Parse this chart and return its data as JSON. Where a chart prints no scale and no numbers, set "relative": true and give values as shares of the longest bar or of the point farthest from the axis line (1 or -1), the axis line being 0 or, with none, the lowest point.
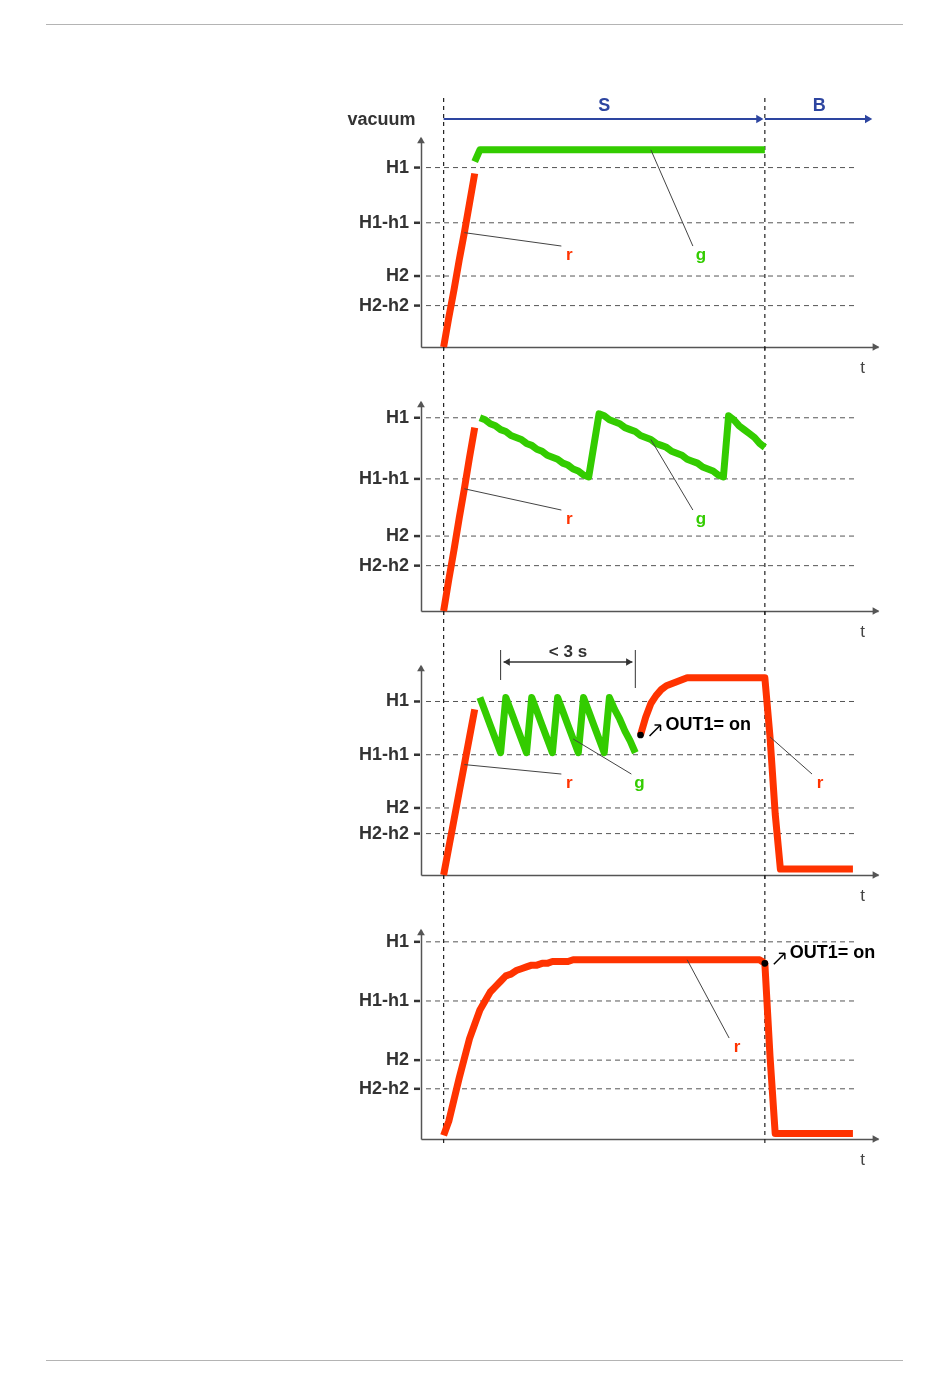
{
  "chart_data": [
    {
      "type": "line",
      "relative": true,
      "xlabel": "t",
      "ylabel": "vacuum",
      "categories": [
        null,
        null,
        null,
        null,
        null,
        null,
        null,
        null,
        null,
        null,
        null,
        null,
        null,
        null,
        null,
        null,
        null,
        null,
        null,
        null,
        null,
        null,
        null,
        null,
        null,
        null,
        null,
        null,
        null,
        null,
        null,
        null,
        null,
        null,
        null,
        null,
        null,
        null,
        null,
        null,
        null,
        null,
        null,
        null,
        null,
        null,
        null,
        null,
        null,
        null,
        null,
        null,
        null,
        null,
        null,
        null,
        null,
        null,
        null,
        null,
        null,
        null,
        null,
        null,
        null,
        null,
        null,
        null,
        null,
        null,
        null,
        null,
        null,
        null,
        null,
        null,
        null,
        null,
        null,
        null,
        null,
        null,
        null,
        null
      ],
      "series": [
        {
          "name": "r",
          "color": "#ff3300",
          "values": [
            0,
            0.15,
            0.29,
            0.44,
            0.58,
            0.73,
            0.88,
            null,
            null,
            null,
            null,
            null,
            null,
            null,
            null,
            null,
            null,
            null,
            null,
            null,
            null,
            null,
            null,
            null,
            null,
            null,
            null,
            null,
            null,
            null,
            null,
            null,
            null,
            null,
            null,
            null,
            null,
            null,
            null,
            null,
            null,
            null,
            null,
            null,
            null,
            null,
            null,
            null,
            null,
            null,
            null,
            null,
            null,
            null,
            null,
            null,
            null,
            null,
            null,
            null,
            null,
            null,
            null,
            null,
            null,
            null,
            null,
            null,
            null,
            null,
            null,
            null,
            null,
            null,
            null,
            null,
            null,
            null,
            null,
            null,
            null,
            null,
            null,
            null
          ]
        },
        {
          "name": "g",
          "color": "#33cc00",
          "values": [
            null,
            null,
            null,
            null,
            null,
            null,
            0.94,
            1,
            1,
            1,
            1,
            1,
            1,
            1,
            1,
            1,
            1,
            1,
            1,
            1,
            1,
            1,
            1,
            1,
            1,
            1,
            1,
            1,
            1,
            1,
            1,
            1,
            1,
            1,
            1,
            1,
            1,
            1,
            1,
            1,
            1,
            1,
            1,
            1,
            1,
            1,
            1,
            1,
            1,
            1,
            1,
            1,
            1,
            1,
            1,
            1,
            1,
            1,
            1,
            1,
            1,
            1,
            1,
            null,
            null,
            null,
            null,
            null,
            null,
            null,
            null,
            null,
            null,
            null,
            null,
            null,
            null,
            null,
            null,
            null,
            null,
            null,
            null,
            null
          ]
        }
      ],
      "ref_lines": [
        {
          "axis": "y",
          "value": 0.91,
          "label": "H1",
          "line_style": "dashed"
        },
        {
          "axis": "y",
          "value": 0.63,
          "label": "H1-h1",
          "line_style": "dashed"
        },
        {
          "axis": "y",
          "value": 0.36,
          "label": "H2",
          "line_style": "dashed"
        },
        {
          "axis": "y",
          "value": 0.21,
          "label": "H2-h2",
          "line_style": "dashed"
        }
      ],
      "annotations": [
        "S",
        "B"
      ]
    },
    {
      "type": "line",
      "relative": true,
      "xlabel": "t",
      "categories": [
        null,
        null,
        null,
        null,
        null,
        null,
        null,
        null,
        null,
        null,
        null,
        null,
        null,
        null,
        null,
        null,
        null,
        null,
        null,
        null,
        null,
        null,
        null,
        null,
        null,
        null,
        null,
        null,
        null,
        null,
        null,
        null,
        null,
        null,
        null,
        null,
        null,
        null,
        null,
        null,
        null,
        null,
        null,
        null,
        null,
        null,
        null,
        null,
        null,
        null,
        null,
        null,
        null,
        null,
        null,
        null,
        null,
        null,
        null,
        null,
        null,
        null,
        null,
        null,
        null,
        null,
        null,
        null,
        null,
        null,
        null,
        null,
        null,
        null,
        null,
        null,
        null,
        null,
        null,
        null,
        null,
        null,
        null,
        null
      ],
      "series": [
        {
          "name": "r",
          "color": "#ff3300",
          "values": [
            0,
            0.16,
            0.31,
            0.47,
            0.62,
            0.78,
            0.93,
            null,
            null,
            null,
            null,
            null,
            null,
            null,
            null,
            null,
            null,
            null,
            null,
            null,
            null,
            null,
            null,
            null,
            null,
            null,
            null,
            null,
            null,
            null,
            null,
            null,
            null,
            null,
            null,
            null,
            null,
            null,
            null,
            null,
            null,
            null,
            null,
            null,
            null,
            null,
            null,
            null,
            null,
            null,
            null,
            null,
            null,
            null,
            null,
            null,
            null,
            null,
            null,
            null,
            null,
            null,
            null,
            null,
            null,
            null,
            null,
            null,
            null,
            null,
            null,
            null,
            null,
            null,
            null,
            null,
            null,
            null,
            null,
            null,
            null,
            null,
            null,
            null
          ]
        },
        {
          "name": "g",
          "color": "#33cc00",
          "values": [
            null,
            null,
            null,
            null,
            null,
            null,
            null,
            0.98,
            0.97,
            0.95,
            0.94,
            0.92,
            0.91,
            0.89,
            0.88,
            0.87,
            0.85,
            0.84,
            0.82,
            0.81,
            0.79,
            0.78,
            0.77,
            0.75,
            0.74,
            0.72,
            0.71,
            0.69,
            0.68,
            0.84,
            1,
            0.99,
            0.97,
            0.96,
            0.95,
            0.93,
            0.92,
            0.91,
            0.89,
            0.88,
            0.87,
            0.85,
            0.84,
            0.83,
            0.81,
            0.8,
            0.79,
            0.77,
            0.76,
            0.75,
            0.73,
            0.72,
            0.71,
            0.69,
            0.68,
            0.99,
            0.97,
            0.94,
            0.92,
            0.9,
            0.88,
            0.85,
            0.83,
            null,
            null,
            null,
            null,
            null,
            null,
            null,
            null,
            null,
            null,
            null,
            null,
            null,
            null,
            null,
            null,
            null,
            null,
            null,
            null,
            null
          ]
        }
      ],
      "ref_lines": [
        {
          "axis": "y",
          "value": 0.98,
          "label": "H1",
          "line_style": "dashed"
        },
        {
          "axis": "y",
          "value": 0.67,
          "label": "H1-h1",
          "line_style": "dashed"
        },
        {
          "axis": "y",
          "value": 0.38,
          "label": "H2",
          "line_style": "dashed"
        },
        {
          "axis": "y",
          "value": 0.23,
          "label": "H2-h2",
          "line_style": "dashed"
        }
      ]
    },
    {
      "type": "line",
      "relative": true,
      "xlabel": "t",
      "categories": [
        null,
        null,
        null,
        null,
        null,
        null,
        null,
        null,
        null,
        null,
        null,
        null,
        null,
        null,
        null,
        null,
        null,
        null,
        null,
        null,
        null,
        null,
        null,
        null,
        null,
        null,
        null,
        null,
        null,
        null,
        null,
        null,
        null,
        null,
        null,
        null,
        null,
        null,
        null,
        null,
        null,
        null,
        null,
        null,
        null,
        null,
        null,
        null,
        null,
        null,
        null,
        null,
        null,
        null,
        null,
        null,
        null,
        null,
        null,
        null,
        null,
        null,
        null,
        null,
        null,
        null,
        null,
        null,
        null,
        null,
        null,
        null,
        null,
        null,
        null,
        null,
        null,
        null,
        null,
        null,
        null,
        null,
        null,
        null
      ],
      "series": [
        {
          "name": "r",
          "color": "#ff3300",
          "values": [
            0,
            0.14,
            0.28,
            0.42,
            0.56,
            0.7,
            0.84,
            null,
            null,
            null,
            null,
            null,
            null,
            null,
            null,
            null,
            null,
            null,
            null,
            null,
            null,
            null,
            null,
            null,
            null,
            null,
            null,
            null,
            null,
            null,
            null,
            null,
            null,
            null,
            null,
            null,
            null,
            null,
            0.71,
            0.8,
            0.87,
            0.91,
            0.94,
            0.96,
            0.97,
            0.98,
            0.99,
            1,
            1,
            1,
            1,
            1,
            1,
            1,
            1,
            1,
            1,
            1,
            1,
            1,
            1,
            1,
            1,
            0.7,
            0.31,
            0.03,
            0.03,
            0.03,
            0.03,
            0.03,
            0.03,
            0.03,
            0.03,
            0.03,
            0.03,
            0.03,
            0.03,
            0.03,
            0.03,
            0.03,
            null,
            null,
            null,
            null
          ]
        },
        {
          "name": "g",
          "color": "#33cc00",
          "values": [
            null,
            null,
            null,
            null,
            null,
            null,
            null,
            0.9,
            0.83,
            0.76,
            0.69,
            0.62,
            0.9,
            0.83,
            0.76,
            0.69,
            0.62,
            0.9,
            0.83,
            0.76,
            0.69,
            0.62,
            0.9,
            0.83,
            0.76,
            0.69,
            0.62,
            0.9,
            0.83,
            0.76,
            0.69,
            0.62,
            0.9,
            0.84,
            0.79,
            0.73,
            0.68,
            0.62,
            null,
            null,
            null,
            null,
            null,
            null,
            null,
            null,
            null,
            null,
            null,
            null,
            null,
            null,
            null,
            null,
            null,
            null,
            null,
            null,
            null,
            null,
            null,
            null,
            null,
            null,
            null,
            null,
            null,
            null,
            null,
            null,
            null,
            null,
            null,
            null,
            null,
            null,
            null,
            null,
            null,
            null,
            null,
            null,
            null,
            null
          ]
        }
      ],
      "ref_lines": [
        {
          "axis": "y",
          "value": 0.88,
          "label": "H1",
          "line_style": "dashed"
        },
        {
          "axis": "y",
          "value": 0.61,
          "label": "H1-h1",
          "line_style": "dashed"
        },
        {
          "axis": "y",
          "value": 0.34,
          "label": "H2",
          "line_style": "dashed"
        },
        {
          "axis": "y",
          "value": 0.21,
          "label": "H2-h2",
          "line_style": "dashed"
        }
      ],
      "annotations": [
        "< 3 s",
        "OUT1= on"
      ]
    },
    {
      "type": "line",
      "relative": true,
      "xlabel": "t",
      "categories": [
        null,
        null,
        null,
        null,
        null,
        null,
        null,
        null,
        null,
        null,
        null,
        null,
        null,
        null,
        null,
        null,
        null,
        null,
        null,
        null,
        null,
        null,
        null,
        null,
        null,
        null,
        null,
        null,
        null,
        null,
        null,
        null,
        null,
        null,
        null,
        null,
        null,
        null,
        null,
        null,
        null,
        null,
        null,
        null,
        null,
        null,
        null,
        null,
        null,
        null,
        null,
        null,
        null,
        null,
        null,
        null,
        null,
        null,
        null,
        null,
        null,
        null,
        null,
        null,
        null,
        null,
        null,
        null,
        null,
        null,
        null,
        null,
        null,
        null,
        null,
        null,
        null,
        null,
        null,
        null,
        null,
        null,
        null,
        null
      ],
      "series": [
        {
          "name": "r",
          "color": "#ff3300",
          "values": [
            0.02,
            0.1,
            0.22,
            0.34,
            0.45,
            0.56,
            0.64,
            0.72,
            0.77,
            0.82,
            0.85,
            0.88,
            0.91,
            0.92,
            0.94,
            0.95,
            0.96,
            0.97,
            0.97,
            0.98,
            0.98,
            0.99,
            0.99,
            0.99,
            0.99,
            1,
            1,
            1,
            1,
            1,
            1,
            1,
            1,
            1,
            1,
            1,
            1,
            1,
            1,
            1,
            1,
            1,
            1,
            1,
            1,
            1,
            1,
            1,
            1,
            1,
            1,
            1,
            1,
            1,
            1,
            1,
            1,
            1,
            1,
            1,
            1,
            1,
            0.98,
            0.46,
            0.03,
            0.03,
            0.03,
            0.03,
            0.03,
            0.03,
            0.03,
            0.03,
            0.03,
            0.03,
            0.03,
            0.03,
            0.03,
            0.03,
            0.03,
            0.03,
            null,
            null,
            null,
            null
          ]
        }
      ],
      "ref_lines": [
        {
          "axis": "y",
          "value": 1.1,
          "label": "H1",
          "line_style": "dashed"
        },
        {
          "axis": "y",
          "value": 0.77,
          "label": "H1-h1",
          "line_style": "dashed"
        },
        {
          "axis": "y",
          "value": 0.44,
          "label": "H2",
          "line_style": "dashed"
        },
        {
          "axis": "y",
          "value": 0.28,
          "label": "H2-h2",
          "line_style": "dashed"
        }
      ],
      "annotations": [
        "OUT1= on"
      ]
    }
  ]
}
